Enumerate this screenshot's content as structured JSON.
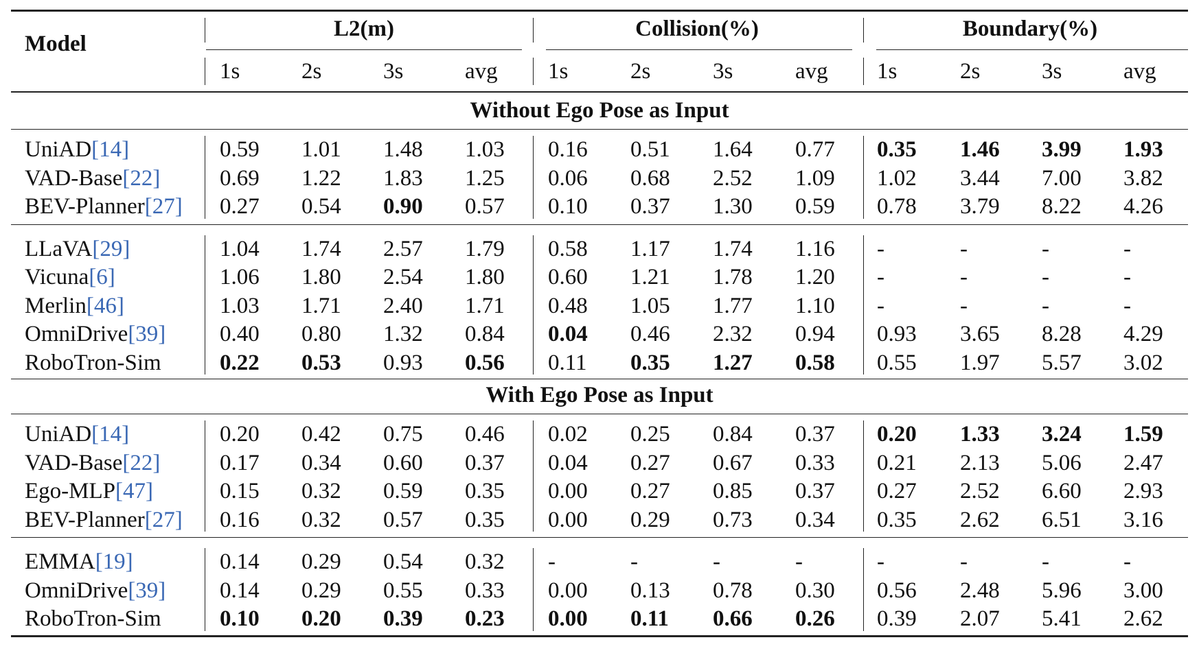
{
  "header": {
    "model_label": "Model",
    "groups": [
      "L2(m)",
      "Collision(%)",
      "Boundary(%)"
    ],
    "subcols": [
      "1s",
      "2s",
      "3s",
      "avg"
    ]
  },
  "sections": [
    {
      "title": "Without Ego Pose as Input",
      "blocks": [
        [
          {
            "name": "UniAD",
            "ref": "[14]",
            "values": [
              "0.59",
              "1.01",
              "1.48",
              "1.03",
              "0.16",
              "0.51",
              "1.64",
              "0.77",
              "0.35",
              "1.46",
              "3.99",
              "1.93"
            ],
            "bold": [
              8,
              9,
              10,
              11
            ]
          },
          {
            "name": "VAD-Base",
            "ref": "[22]",
            "values": [
              "0.69",
              "1.22",
              "1.83",
              "1.25",
              "0.06",
              "0.68",
              "2.52",
              "1.09",
              "1.02",
              "3.44",
              "7.00",
              "3.82"
            ],
            "bold": []
          },
          {
            "name": "BEV-Planner",
            "ref": "[27]",
            "values": [
              "0.27",
              "0.54",
              "0.90",
              "0.57",
              "0.10",
              "0.37",
              "1.30",
              "0.59",
              "0.78",
              "3.79",
              "8.22",
              "4.26"
            ],
            "bold": [
              2
            ]
          }
        ],
        [
          {
            "name": "LLaVA",
            "ref": "[29]",
            "values": [
              "1.04",
              "1.74",
              "2.57",
              "1.79",
              "0.58",
              "1.17",
              "1.74",
              "1.16",
              "-",
              "-",
              "-",
              "-"
            ],
            "bold": []
          },
          {
            "name": "Vicuna",
            "ref": "[6]",
            "values": [
              "1.06",
              "1.80",
              "2.54",
              "1.80",
              "0.60",
              "1.21",
              "1.78",
              "1.20",
              "-",
              "-",
              "-",
              "-"
            ],
            "bold": []
          },
          {
            "name": "Merlin",
            "ref": "[46]",
            "values": [
              "1.03",
              "1.71",
              "2.40",
              "1.71",
              "0.48",
              "1.05",
              "1.77",
              "1.10",
              "-",
              "-",
              "-",
              "-"
            ],
            "bold": []
          },
          {
            "name": "OmniDrive",
            "ref": "[39]",
            "values": [
              "0.40",
              "0.80",
              "1.32",
              "0.84",
              "0.04",
              "0.46",
              "2.32",
              "0.94",
              "0.93",
              "3.65",
              "8.28",
              "4.29"
            ],
            "bold": [
              4
            ]
          },
          {
            "name": "RoboTron-Sim",
            "ref": "",
            "values": [
              "0.22",
              "0.53",
              "0.93",
              "0.56",
              "0.11",
              "0.35",
              "1.27",
              "0.58",
              "0.55",
              "1.97",
              "5.57",
              "3.02"
            ],
            "bold": [
              0,
              1,
              3,
              5,
              6,
              7
            ]
          }
        ]
      ]
    },
    {
      "title": "With Ego Pose as Input",
      "blocks": [
        [
          {
            "name": "UniAD",
            "ref": "[14]",
            "values": [
              "0.20",
              "0.42",
              "0.75",
              "0.46",
              "0.02",
              "0.25",
              "0.84",
              "0.37",
              "0.20",
              "1.33",
              "3.24",
              "1.59"
            ],
            "bold": [
              8,
              9,
              10,
              11
            ]
          },
          {
            "name": "VAD-Base",
            "ref": "[22]",
            "values": [
              "0.17",
              "0.34",
              "0.60",
              "0.37",
              "0.04",
              "0.27",
              "0.67",
              "0.33",
              "0.21",
              "2.13",
              "5.06",
              "2.47"
            ],
            "bold": []
          },
          {
            "name": "Ego-MLP",
            "ref": "[47]",
            "values": [
              "0.15",
              "0.32",
              "0.59",
              "0.35",
              "0.00",
              "0.27",
              "0.85",
              "0.37",
              "0.27",
              "2.52",
              "6.60",
              "2.93"
            ],
            "bold": []
          },
          {
            "name": "BEV-Planner",
            "ref": "[27]",
            "values": [
              "0.16",
              "0.32",
              "0.57",
              "0.35",
              "0.00",
              "0.29",
              "0.73",
              "0.34",
              "0.35",
              "2.62",
              "6.51",
              "3.16"
            ],
            "bold": []
          }
        ],
        [
          {
            "name": "EMMA",
            "ref": "[19]",
            "values": [
              "0.14",
              "0.29",
              "0.54",
              "0.32",
              "-",
              "-",
              "-",
              "-",
              "-",
              "-",
              "-",
              "-"
            ],
            "bold": []
          },
          {
            "name": "OmniDrive",
            "ref": "[39]",
            "values": [
              "0.14",
              "0.29",
              "0.55",
              "0.33",
              "0.00",
              "0.13",
              "0.78",
              "0.30",
              "0.56",
              "2.48",
              "5.96",
              "3.00"
            ],
            "bold": []
          },
          {
            "name": "RoboTron-Sim",
            "ref": "",
            "values": [
              "0.10",
              "0.20",
              "0.39",
              "0.23",
              "0.00",
              "0.11",
              "0.66",
              "0.26",
              "0.39",
              "2.07",
              "5.41",
              "2.62"
            ],
            "bold": [
              0,
              1,
              2,
              3,
              4,
              5,
              6,
              7
            ]
          }
        ]
      ]
    }
  ]
}
